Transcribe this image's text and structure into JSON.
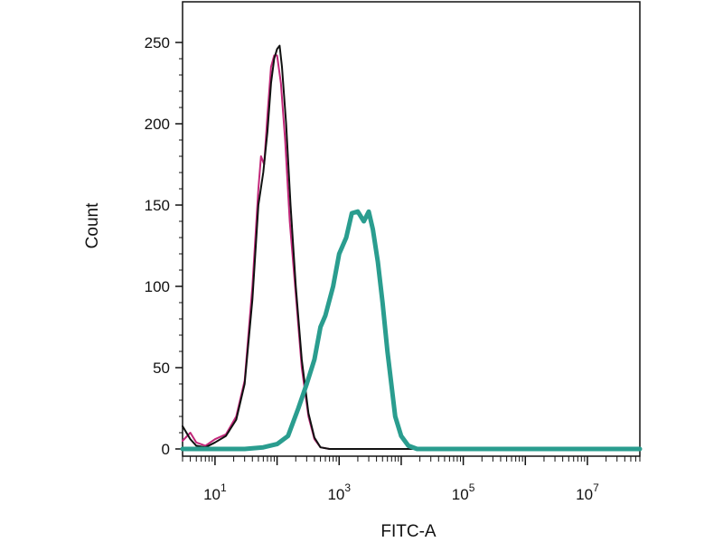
{
  "chart_data": {
    "type": "line",
    "xlabel": "FITC-A",
    "ylabel": "Count",
    "x_scale": "log",
    "xlim": [
      3,
      70000000
    ],
    "ylim": [
      0,
      255
    ],
    "grid": false,
    "y_ticks": [
      0,
      50,
      100,
      150,
      200,
      250
    ],
    "x_ticks": [
      {
        "value": 10,
        "base": "10",
        "exp": "1"
      },
      {
        "value": 1000,
        "base": "10",
        "exp": "3"
      },
      {
        "value": 100000,
        "base": "10",
        "exp": "5"
      },
      {
        "value": 10000000,
        "base": "10",
        "exp": "7"
      }
    ],
    "series": [
      {
        "color": "#c2287a",
        "stroke_width": 2,
        "points": [
          [
            3,
            5
          ],
          [
            4,
            10
          ],
          [
            5,
            4
          ],
          [
            7,
            2
          ],
          [
            10,
            6
          ],
          [
            15,
            9
          ],
          [
            22,
            20
          ],
          [
            30,
            42
          ],
          [
            40,
            100
          ],
          [
            50,
            160
          ],
          [
            55,
            180
          ],
          [
            62,
            175
          ],
          [
            70,
            205
          ],
          [
            80,
            235
          ],
          [
            90,
            242
          ],
          [
            100,
            242
          ],
          [
            115,
            225
          ],
          [
            135,
            190
          ],
          [
            160,
            140
          ],
          [
            200,
            95
          ],
          [
            250,
            50
          ],
          [
            320,
            20
          ],
          [
            400,
            6
          ],
          [
            500,
            1
          ],
          [
            700,
            0
          ],
          [
            70000000,
            0
          ]
        ]
      },
      {
        "color": "#111111",
        "stroke_width": 2,
        "points": [
          [
            3,
            14
          ],
          [
            4,
            6
          ],
          [
            5,
            2
          ],
          [
            7,
            1
          ],
          [
            10,
            4
          ],
          [
            15,
            8
          ],
          [
            22,
            18
          ],
          [
            30,
            40
          ],
          [
            40,
            92
          ],
          [
            50,
            150
          ],
          [
            60,
            170
          ],
          [
            70,
            195
          ],
          [
            80,
            225
          ],
          [
            90,
            240
          ],
          [
            100,
            246
          ],
          [
            110,
            248
          ],
          [
            120,
            235
          ],
          [
            140,
            200
          ],
          [
            165,
            150
          ],
          [
            200,
            100
          ],
          [
            250,
            55
          ],
          [
            320,
            22
          ],
          [
            400,
            7
          ],
          [
            500,
            1
          ],
          [
            700,
            0
          ],
          [
            70000000,
            0
          ]
        ]
      },
      {
        "color": "#2a9d8f",
        "stroke_width": 5,
        "points": [
          [
            3,
            0
          ],
          [
            30,
            0
          ],
          [
            60,
            1
          ],
          [
            100,
            3
          ],
          [
            150,
            8
          ],
          [
            220,
            25
          ],
          [
            300,
            40
          ],
          [
            400,
            55
          ],
          [
            500,
            75
          ],
          [
            600,
            82
          ],
          [
            800,
            100
          ],
          [
            1000,
            120
          ],
          [
            1300,
            130
          ],
          [
            1600,
            145
          ],
          [
            2000,
            146
          ],
          [
            2500,
            140
          ],
          [
            3000,
            146
          ],
          [
            3500,
            135
          ],
          [
            4200,
            115
          ],
          [
            5000,
            90
          ],
          [
            6000,
            60
          ],
          [
            8000,
            20
          ],
          [
            10000,
            8
          ],
          [
            13000,
            2
          ],
          [
            18000,
            0
          ],
          [
            70000000,
            0
          ]
        ]
      }
    ]
  }
}
